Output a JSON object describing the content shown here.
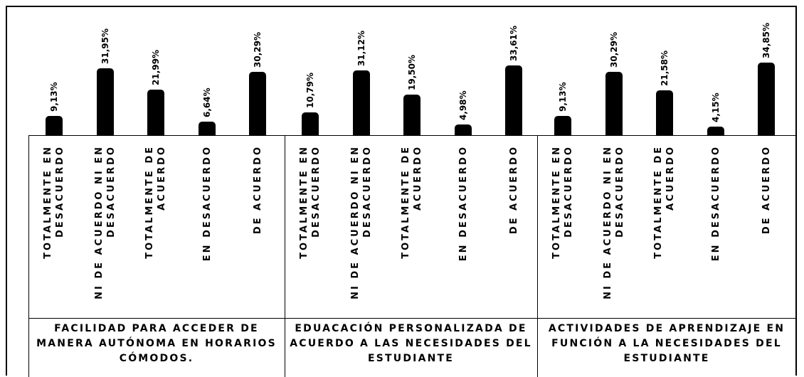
{
  "chart_data": {
    "type": "bar",
    "color": "#000000",
    "groups": [
      {
        "name": "FACILIDAD PARA ACCEDER DE MANERA AUTÓNOMA EN HORARIOS CÓMODOS.",
        "categories": [
          "TOTALMENTE EN DESACUERDO",
          "NI DE ACUERDO NI EN DESACUERDO",
          "TOTALMENTE DE ACUERDO",
          "EN DESACUERDO",
          "DE ACUERDO"
        ],
        "values": [
          9.13,
          31.95,
          21.99,
          6.64,
          30.29
        ],
        "value_labels": [
          "9,13%",
          "31,95%",
          "21,99%",
          "6,64%",
          "30,29%"
        ]
      },
      {
        "name": "EDUACACIÓN PERSONALIZADA DE ACUERDO A LAS NECESIDADES DEL ESTUDIANTE",
        "categories": [
          "TOTALMENTE EN DESACUERDO",
          "NI DE ACUERDO NI EN DESACUERDO",
          "TOTALMENTE DE ACUERDO",
          "EN DESACUERDO",
          "DE ACUERDO"
        ],
        "values": [
          10.79,
          31.12,
          19.5,
          4.98,
          33.61
        ],
        "value_labels": [
          "10,79%",
          "31,12%",
          "19,50%",
          "4,98%",
          "33,61%"
        ]
      },
      {
        "name": "ACTIVIDADES DE APRENDIZAJE EN FUNCIÓN A LA NECESIDADES DEL ESTUDIANTE",
        "categories": [
          "TOTALMENTE EN DESACUERDO",
          "NI DE ACUERDO NI EN DESACUERDO",
          "TOTALMENTE DE ACUERDO",
          "EN DESACUERDO",
          "DE ACUERDO"
        ],
        "values": [
          9.13,
          30.29,
          21.58,
          4.15,
          34.85
        ],
        "value_labels": [
          "9,13%",
          "30,29%",
          "21,58%",
          "4,15%",
          "34,85%"
        ]
      }
    ]
  }
}
